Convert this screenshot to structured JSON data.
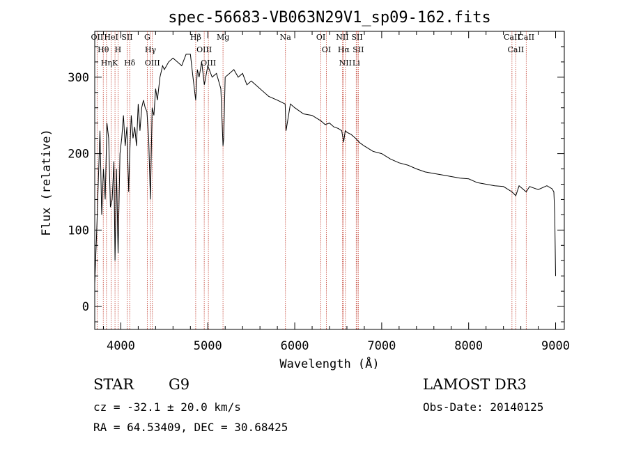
{
  "colors": {
    "spectrum": "#000000",
    "lines": "#c0392b",
    "axes": "#000000",
    "background": "#ffffff"
  },
  "chart_data": {
    "type": "line",
    "title": "spec-56683-VB063N29V1_sp09-162.fits",
    "xlabel": "Wavelength (Å)",
    "ylabel": "Flux (relative)",
    "xlim": [
      3700,
      9100
    ],
    "ylim": [
      -30,
      360
    ],
    "xticks": [
      4000,
      5000,
      6000,
      7000,
      8000,
      9000
    ],
    "yticks": [
      0,
      100,
      200,
      300
    ],
    "grid": false,
    "series": [
      {
        "name": "spectrum",
        "x": [
          3700,
          3710,
          3720,
          3740,
          3760,
          3780,
          3800,
          3820,
          3840,
          3860,
          3880,
          3900,
          3920,
          3933,
          3950,
          3968,
          3990,
          4010,
          4030,
          4050,
          4070,
          4090,
          4102,
          4120,
          4140,
          4160,
          4180,
          4200,
          4220,
          4240,
          4260,
          4280,
          4300,
          4320,
          4340,
          4360,
          4380,
          4400,
          4420,
          4450,
          4480,
          4500,
          4550,
          4600,
          4650,
          4700,
          4750,
          4800,
          4830,
          4861,
          4880,
          4900,
          4930,
          4960,
          5000,
          5050,
          5100,
          5150,
          5175,
          5183,
          5200,
          5250,
          5300,
          5350,
          5400,
          5450,
          5500,
          5600,
          5700,
          5800,
          5890,
          5900,
          5950,
          6000,
          6100,
          6200,
          6300,
          6330,
          6350,
          6400,
          6450,
          6500,
          6540,
          6563,
          6580,
          6600,
          6650,
          6700,
          6750,
          6800,
          6900,
          7000,
          7100,
          7200,
          7300,
          7400,
          7500,
          7600,
          7700,
          7800,
          7900,
          8000,
          8100,
          8200,
          8300,
          8400,
          8498,
          8542,
          8580,
          8662,
          8700,
          8800,
          8900,
          8960,
          8980,
          8990,
          9000
        ],
        "values": [
          30,
          60,
          90,
          160,
          230,
          120,
          180,
          140,
          240,
          220,
          130,
          140,
          190,
          60,
          180,
          70,
          200,
          220,
          250,
          210,
          235,
          150,
          200,
          250,
          220,
          235,
          210,
          265,
          230,
          260,
          270,
          260,
          255,
          220,
          140,
          260,
          250,
          285,
          270,
          300,
          315,
          310,
          320,
          325,
          320,
          315,
          330,
          330,
          300,
          270,
          310,
          300,
          320,
          290,
          315,
          300,
          305,
          285,
          210,
          220,
          300,
          305,
          310,
          300,
          305,
          290,
          295,
          285,
          275,
          270,
          265,
          230,
          265,
          260,
          252,
          250,
          243,
          240,
          238,
          240,
          235,
          233,
          230,
          215,
          230,
          228,
          225,
          220,
          214,
          210,
          203,
          200,
          193,
          188,
          185,
          180,
          176,
          174,
          172,
          170,
          168,
          167,
          162,
          160,
          158,
          157,
          150,
          145,
          158,
          150,
          157,
          153,
          158,
          154,
          150,
          120,
          40
        ]
      }
    ],
    "line_markers": [
      {
        "wavelength": 3727,
        "label": "OII"
      },
      {
        "wavelength": 3798,
        "label": "Hθ"
      },
      {
        "wavelength": 3835,
        "label": "Hη"
      },
      {
        "wavelength": 3889,
        "label": "HeI"
      },
      {
        "wavelength": 3933,
        "label": "K"
      },
      {
        "wavelength": 3968,
        "label": "H"
      },
      {
        "wavelength": 4072,
        "label": "SII"
      },
      {
        "wavelength": 4102,
        "label": "Hδ"
      },
      {
        "wavelength": 4304,
        "label": "G"
      },
      {
        "wavelength": 4341,
        "label": "Hγ"
      },
      {
        "wavelength": 4363,
        "label": "OIII"
      },
      {
        "wavelength": 4861,
        "label": "Hβ"
      },
      {
        "wavelength": 4959,
        "label": "OIII"
      },
      {
        "wavelength": 5007,
        "label": "OIII"
      },
      {
        "wavelength": 5175,
        "label": "Mg"
      },
      {
        "wavelength": 5893,
        "label": "Na"
      },
      {
        "wavelength": 6300,
        "label": "OI"
      },
      {
        "wavelength": 6364,
        "label": "OI"
      },
      {
        "wavelength": 6548,
        "label": "NII"
      },
      {
        "wavelength": 6563,
        "label": "Hα"
      },
      {
        "wavelength": 6583,
        "label": "NII"
      },
      {
        "wavelength": 6707,
        "label": "Li"
      },
      {
        "wavelength": 6717,
        "label": "SII"
      },
      {
        "wavelength": 6731,
        "label": "SII"
      },
      {
        "wavelength": 8498,
        "label": "CaII"
      },
      {
        "wavelength": 8542,
        "label": "CaII"
      },
      {
        "wavelength": 8662,
        "label": "CaII"
      }
    ]
  },
  "info": {
    "class": "STAR",
    "subclass": "G9",
    "survey": "LAMOST DR3",
    "cz": "cz = -32.1 ± 20.0 km/s",
    "obs_date": "Obs-Date: 20140125",
    "coords": "RA =  64.53409, DEC =  30.68425"
  }
}
